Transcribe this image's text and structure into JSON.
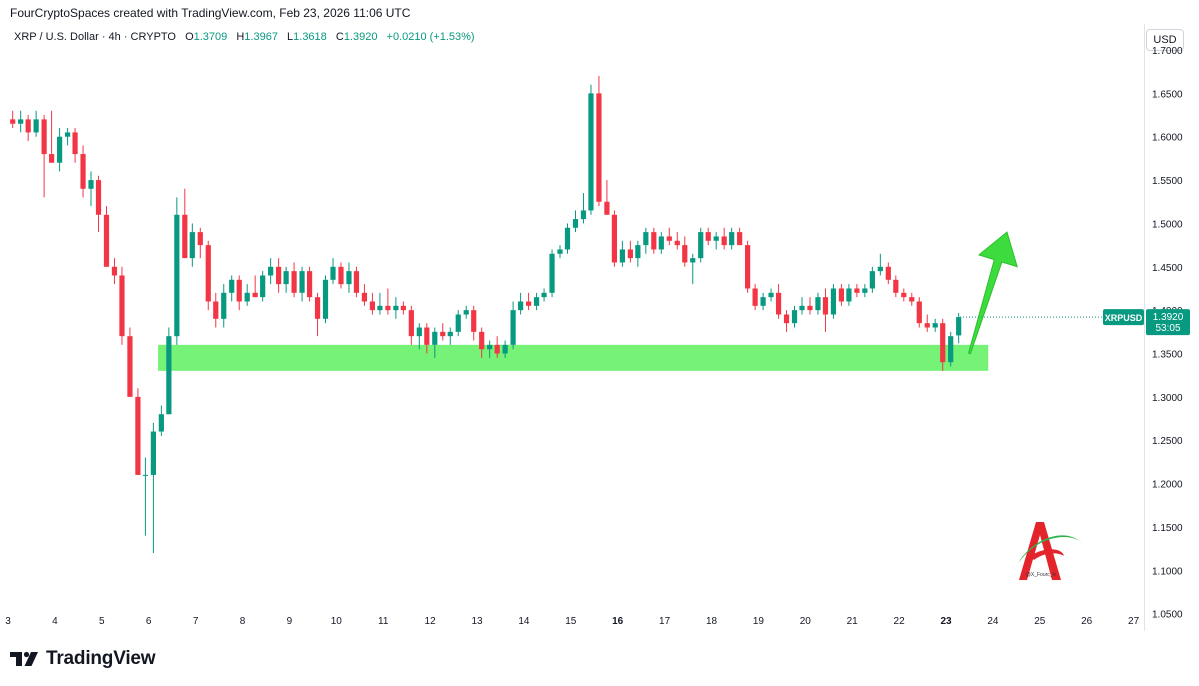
{
  "header": {
    "credit": "FourCryptoSpaces created with TradingView.com, Feb 23, 2026 11:06 UTC"
  },
  "legend": {
    "symbol": "XRP / U.S. Dollar · 4h · CRYPTO",
    "open_label": "O",
    "open": "1.3709",
    "high_label": "H",
    "high": "1.3967",
    "low_label": "L",
    "low": "1.3618",
    "close_label": "C",
    "close": "1.3920",
    "change": "+0.0210 (+1.53%)"
  },
  "currency_button": "USD",
  "price_tag": {
    "symbol": "XRPUSD",
    "price": "1.3920",
    "countdown": "53:05"
  },
  "watermark_text": "@X_Fourc_lv",
  "footer": {
    "brand": "TradingView"
  },
  "colors": {
    "up": "#089981",
    "down": "#f23645",
    "zone": "#5ef05e",
    "arrow": "#3ddb3d",
    "tag": "#089981"
  },
  "chart_data": {
    "type": "candlestick",
    "symbol": "XRPUSD",
    "timeframe": "4h",
    "ylim": [
      1.03,
      1.73
    ],
    "y_ticks": [
      "1.0500",
      "1.1000",
      "1.1500",
      "1.2000",
      "1.2500",
      "1.3000",
      "1.3500",
      "1.4000",
      "1.4500",
      "1.5000",
      "1.5500",
      "1.6000",
      "1.6500",
      "1.7000"
    ],
    "x_ticks": [
      "3",
      "4",
      "5",
      "6",
      "7",
      "8",
      "9",
      "10",
      "11",
      "12",
      "13",
      "14",
      "15",
      "16",
      "17",
      "18",
      "19",
      "20",
      "21",
      "22",
      "23",
      "24",
      "25",
      "26",
      "27"
    ],
    "last_price": 1.392,
    "support_zone": [
      1.33,
      1.36
    ],
    "support_zone_days": [
      6.2,
      23.9
    ],
    "arrow": {
      "from": {
        "day": 23.5,
        "price": 1.35
      },
      "to": {
        "day": 24.3,
        "price": 1.49
      }
    },
    "candles": [
      [
        3.1,
        1.62,
        1.63,
        1.61,
        1.615
      ],
      [
        3.27,
        1.615,
        1.63,
        1.605,
        1.62
      ],
      [
        3.43,
        1.62,
        1.625,
        1.595,
        1.605
      ],
      [
        3.6,
        1.605,
        1.63,
        1.6,
        1.62
      ],
      [
        3.77,
        1.62,
        1.625,
        1.53,
        1.58
      ],
      [
        3.93,
        1.58,
        1.63,
        1.57,
        1.57
      ],
      [
        4.1,
        1.57,
        1.61,
        1.56,
        1.6
      ],
      [
        4.27,
        1.6,
        1.61,
        1.59,
        1.605
      ],
      [
        4.43,
        1.605,
        1.61,
        1.57,
        1.58
      ],
      [
        4.6,
        1.58,
        1.59,
        1.53,
        1.54
      ],
      [
        4.77,
        1.54,
        1.56,
        1.52,
        1.55
      ],
      [
        4.93,
        1.55,
        1.555,
        1.49,
        1.51
      ],
      [
        5.1,
        1.51,
        1.52,
        1.45,
        1.45
      ],
      [
        5.27,
        1.45,
        1.46,
        1.43,
        1.44
      ],
      [
        5.43,
        1.44,
        1.45,
        1.36,
        1.37
      ],
      [
        5.6,
        1.37,
        1.38,
        1.3,
        1.3
      ],
      [
        5.77,
        1.3,
        1.31,
        1.21,
        1.21
      ],
      [
        5.93,
        1.21,
        1.23,
        1.14,
        1.21
      ],
      [
        6.1,
        1.21,
        1.27,
        1.12,
        1.26
      ],
      [
        6.27,
        1.26,
        1.29,
        1.255,
        1.28
      ],
      [
        6.43,
        1.28,
        1.38,
        1.28,
        1.37
      ],
      [
        6.6,
        1.37,
        1.53,
        1.36,
        1.51
      ],
      [
        6.77,
        1.51,
        1.54,
        1.46,
        1.46
      ],
      [
        6.93,
        1.46,
        1.5,
        1.45,
        1.49
      ],
      [
        7.1,
        1.49,
        1.495,
        1.46,
        1.475
      ],
      [
        7.27,
        1.475,
        1.48,
        1.4,
        1.41
      ],
      [
        7.43,
        1.41,
        1.42,
        1.38,
        1.39
      ],
      [
        7.6,
        1.39,
        1.43,
        1.38,
        1.42
      ],
      [
        7.77,
        1.42,
        1.44,
        1.41,
        1.435
      ],
      [
        7.93,
        1.435,
        1.44,
        1.4,
        1.41
      ],
      [
        8.1,
        1.41,
        1.43,
        1.405,
        1.42
      ],
      [
        8.27,
        1.42,
        1.44,
        1.415,
        1.415
      ],
      [
        8.43,
        1.415,
        1.445,
        1.41,
        1.44
      ],
      [
        8.6,
        1.44,
        1.46,
        1.43,
        1.45
      ],
      [
        8.77,
        1.45,
        1.46,
        1.42,
        1.43
      ],
      [
        8.93,
        1.43,
        1.45,
        1.42,
        1.445
      ],
      [
        9.1,
        1.445,
        1.455,
        1.415,
        1.42
      ],
      [
        9.27,
        1.42,
        1.45,
        1.41,
        1.445
      ],
      [
        9.43,
        1.445,
        1.45,
        1.41,
        1.415
      ],
      [
        9.6,
        1.415,
        1.42,
        1.37,
        1.39
      ],
      [
        9.77,
        1.39,
        1.44,
        1.385,
        1.435
      ],
      [
        9.93,
        1.435,
        1.46,
        1.43,
        1.45
      ],
      [
        10.1,
        1.45,
        1.455,
        1.425,
        1.43
      ],
      [
        10.27,
        1.43,
        1.455,
        1.42,
        1.445
      ],
      [
        10.43,
        1.445,
        1.45,
        1.415,
        1.42
      ],
      [
        10.6,
        1.42,
        1.43,
        1.405,
        1.41
      ],
      [
        10.77,
        1.41,
        1.42,
        1.395,
        1.4
      ],
      [
        10.93,
        1.4,
        1.42,
        1.395,
        1.405
      ],
      [
        11.1,
        1.405,
        1.425,
        1.395,
        1.4
      ],
      [
        11.27,
        1.4,
        1.415,
        1.39,
        1.405
      ],
      [
        11.43,
        1.405,
        1.41,
        1.395,
        1.4
      ],
      [
        11.6,
        1.4,
        1.405,
        1.36,
        1.37
      ],
      [
        11.77,
        1.37,
        1.385,
        1.355,
        1.38
      ],
      [
        11.93,
        1.38,
        1.385,
        1.35,
        1.36
      ],
      [
        12.1,
        1.36,
        1.38,
        1.345,
        1.375
      ],
      [
        12.27,
        1.375,
        1.385,
        1.365,
        1.37
      ],
      [
        12.43,
        1.37,
        1.38,
        1.36,
        1.375
      ],
      [
        12.6,
        1.375,
        1.4,
        1.37,
        1.395
      ],
      [
        12.77,
        1.395,
        1.405,
        1.39,
        1.4
      ],
      [
        12.93,
        1.4,
        1.405,
        1.365,
        1.375
      ],
      [
        13.1,
        1.375,
        1.38,
        1.345,
        1.355
      ],
      [
        13.27,
        1.355,
        1.365,
        1.345,
        1.36
      ],
      [
        13.43,
        1.36,
        1.37,
        1.345,
        1.35
      ],
      [
        13.6,
        1.35,
        1.365,
        1.345,
        1.36
      ],
      [
        13.77,
        1.36,
        1.41,
        1.355,
        1.4
      ],
      [
        13.93,
        1.4,
        1.42,
        1.395,
        1.41
      ],
      [
        14.1,
        1.41,
        1.42,
        1.4,
        1.405
      ],
      [
        14.27,
        1.405,
        1.42,
        1.4,
        1.415
      ],
      [
        14.43,
        1.415,
        1.425,
        1.41,
        1.42
      ],
      [
        14.6,
        1.42,
        1.47,
        1.415,
        1.465
      ],
      [
        14.77,
        1.465,
        1.475,
        1.46,
        1.47
      ],
      [
        14.93,
        1.47,
        1.5,
        1.465,
        1.495
      ],
      [
        15.1,
        1.495,
        1.515,
        1.49,
        1.505
      ],
      [
        15.27,
        1.505,
        1.535,
        1.5,
        1.515
      ],
      [
        15.43,
        1.515,
        1.66,
        1.51,
        1.65
      ],
      [
        15.6,
        1.65,
        1.67,
        1.52,
        1.525
      ],
      [
        15.77,
        1.525,
        1.55,
        1.51,
        1.51
      ],
      [
        15.93,
        1.51,
        1.515,
        1.45,
        1.455
      ],
      [
        16.1,
        1.455,
        1.48,
        1.45,
        1.47
      ],
      [
        16.27,
        1.47,
        1.48,
        1.455,
        1.46
      ],
      [
        16.43,
        1.46,
        1.48,
        1.45,
        1.475
      ],
      [
        16.6,
        1.475,
        1.495,
        1.465,
        1.49
      ],
      [
        16.77,
        1.49,
        1.495,
        1.465,
        1.47
      ],
      [
        16.93,
        1.47,
        1.49,
        1.465,
        1.485
      ],
      [
        17.1,
        1.485,
        1.495,
        1.475,
        1.48
      ],
      [
        17.27,
        1.48,
        1.49,
        1.47,
        1.475
      ],
      [
        17.43,
        1.475,
        1.485,
        1.45,
        1.455
      ],
      [
        17.6,
        1.455,
        1.465,
        1.43,
        1.46
      ],
      [
        17.77,
        1.46,
        1.495,
        1.455,
        1.49
      ],
      [
        17.93,
        1.49,
        1.495,
        1.475,
        1.48
      ],
      [
        18.1,
        1.48,
        1.49,
        1.47,
        1.485
      ],
      [
        18.27,
        1.485,
        1.495,
        1.47,
        1.475
      ],
      [
        18.43,
        1.475,
        1.495,
        1.47,
        1.49
      ],
      [
        18.6,
        1.49,
        1.495,
        1.475,
        1.475
      ],
      [
        18.77,
        1.475,
        1.48,
        1.42,
        1.425
      ],
      [
        18.93,
        1.425,
        1.43,
        1.4,
        1.405
      ],
      [
        19.1,
        1.405,
        1.42,
        1.4,
        1.415
      ],
      [
        19.27,
        1.415,
        1.425,
        1.41,
        1.42
      ],
      [
        19.43,
        1.42,
        1.43,
        1.39,
        1.395
      ],
      [
        19.6,
        1.395,
        1.4,
        1.375,
        1.385
      ],
      [
        19.77,
        1.385,
        1.405,
        1.38,
        1.4
      ],
      [
        19.93,
        1.4,
        1.415,
        1.395,
        1.405
      ],
      [
        20.1,
        1.405,
        1.415,
        1.395,
        1.4
      ],
      [
        20.27,
        1.4,
        1.42,
        1.395,
        1.415
      ],
      [
        20.43,
        1.415,
        1.425,
        1.375,
        1.395
      ],
      [
        20.6,
        1.395,
        1.43,
        1.39,
        1.425
      ],
      [
        20.77,
        1.425,
        1.43,
        1.405,
        1.41
      ],
      [
        20.93,
        1.41,
        1.43,
        1.405,
        1.425
      ],
      [
        21.1,
        1.425,
        1.43,
        1.415,
        1.42
      ],
      [
        21.27,
        1.42,
        1.43,
        1.415,
        1.425
      ],
      [
        21.43,
        1.425,
        1.45,
        1.42,
        1.445
      ],
      [
        21.6,
        1.445,
        1.465,
        1.44,
        1.45
      ],
      [
        21.77,
        1.45,
        1.455,
        1.43,
        1.435
      ],
      [
        21.93,
        1.435,
        1.44,
        1.415,
        1.42
      ],
      [
        22.1,
        1.42,
        1.425,
        1.41,
        1.415
      ],
      [
        22.27,
        1.415,
        1.42,
        1.405,
        1.41
      ],
      [
        22.43,
        1.41,
        1.415,
        1.38,
        1.385
      ],
      [
        22.6,
        1.385,
        1.395,
        1.375,
        1.38
      ],
      [
        22.77,
        1.38,
        1.39,
        1.375,
        1.385
      ],
      [
        22.93,
        1.385,
        1.39,
        1.33,
        1.34
      ],
      [
        23.1,
        1.34,
        1.375,
        1.335,
        1.37
      ],
      [
        23.27,
        1.3709,
        1.3967,
        1.3618,
        1.392
      ]
    ]
  }
}
